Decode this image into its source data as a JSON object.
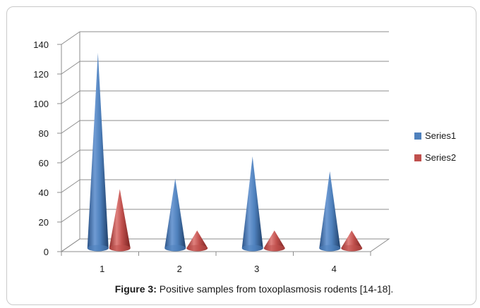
{
  "caption": {
    "label": "Figure 3:",
    "text": " Positive samples from toxoplasmosis rodents [14-18]."
  },
  "colors": {
    "series1": "#4f81bd",
    "series2": "#c0504d",
    "grid": "#8c8c8c"
  },
  "chart_data": {
    "type": "bar",
    "style": "3d-cone",
    "categories": [
      "1",
      "2",
      "3",
      "4"
    ],
    "series": [
      {
        "name": "Series1",
        "values": [
          130,
          45,
          60,
          50
        ]
      },
      {
        "name": "Series2",
        "values": [
          38,
          10,
          10,
          10
        ]
      }
    ],
    "ylim": [
      0,
      140
    ],
    "yticks": [
      0,
      20,
      40,
      60,
      80,
      100,
      120,
      140
    ],
    "grid": true,
    "legend": "right"
  }
}
